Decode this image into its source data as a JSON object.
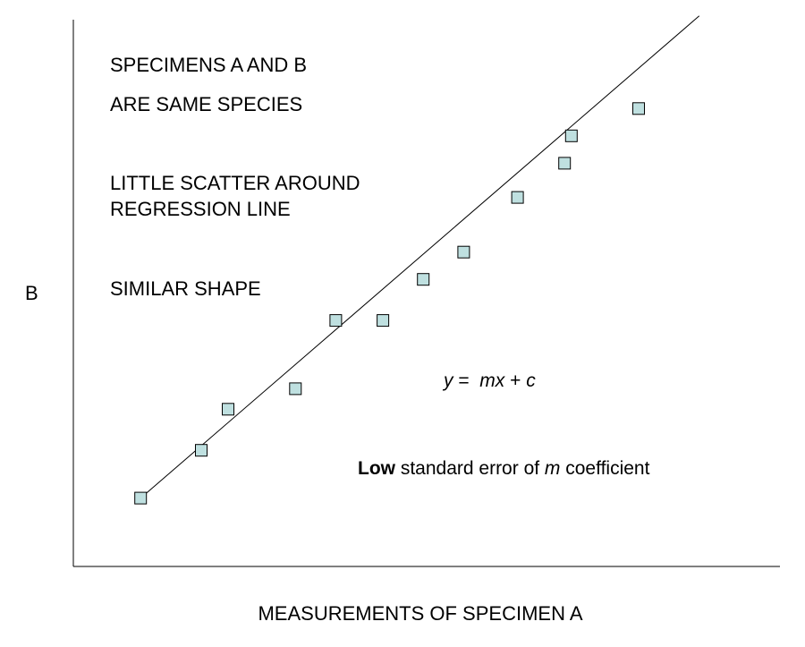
{
  "chart_data": {
    "type": "scatter",
    "title": "",
    "xlabel": "MEASUREMENTS OF SPECIMEN A",
    "ylabel": "B",
    "grid": false,
    "legend": "none",
    "series": [
      {
        "x": [
          1.0,
          1.9,
          2.3,
          3.3,
          3.9,
          4.6,
          5.2,
          5.8,
          6.6,
          7.3,
          7.4,
          8.4
        ],
        "y": [
          1.0,
          1.7,
          2.3,
          2.6,
          3.6,
          3.6,
          4.2,
          4.6,
          5.4,
          5.9,
          6.3,
          6.7
        ]
      }
    ],
    "regression_line": {
      "slope": 0.85,
      "intercept": 0.15,
      "x_range": [
        1.0,
        9.3
      ]
    },
    "marker_color": "#bfe0e0",
    "xlim": [
      0,
      10.5
    ],
    "ylim": [
      0,
      8
    ]
  },
  "annotations": {
    "line1": "SPECIMENS A AND B",
    "line2": "ARE SAME SPECIES",
    "line3": "LITTLE SCATTER AROUND",
    "line4": "REGRESSION LINE",
    "line5": "SIMILAR SHAPE",
    "equation_y": "y",
    "equation_eq": " =  ",
    "equation_mx": "mx",
    "equation_plus": " + ",
    "equation_c": "c",
    "note_bold": "Low",
    "note_mid": " standard error of ",
    "note_italic": "m",
    "note_end": " coefficient"
  }
}
